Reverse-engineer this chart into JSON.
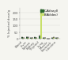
{
  "categories": [
    "Blood",
    "Liver",
    "Spleen",
    "Kidney",
    "Thyroid",
    "Lung",
    "Muscle",
    "Stomach",
    "Intestine"
  ],
  "series": [
    {
      "label": "C-At(aryl)",
      "color": "#2d6a2d",
      "values": [
        8.0,
        12.0,
        5.0,
        9.0,
        18.0,
        5.0,
        1.5,
        4.0,
        6.0
      ],
      "errors": [
        1.2,
        2.0,
        0.8,
        1.5,
        3.0,
        0.8,
        0.3,
        0.6,
        0.9
      ]
    },
    {
      "label": "B-At(dec)",
      "color": "#c8e06a",
      "values": [
        5.0,
        7.0,
        3.0,
        6.0,
        210.0,
        4.0,
        1.0,
        9.0,
        5.0
      ],
      "errors": [
        0.8,
        1.0,
        0.5,
        1.0,
        18.0,
        0.6,
        0.2,
        1.2,
        0.7
      ]
    }
  ],
  "ylabel": "% Injected dose/g",
  "ylim": [
    0,
    240
  ],
  "yticks": [
    0,
    50,
    100,
    150,
    200
  ],
  "bar_width": 0.38,
  "legend_labels": [
    "C-At(aryl)",
    "B-At(dec)"
  ],
  "legend_colors": [
    "#2d6a2d",
    "#c8e06a"
  ],
  "background_color": "#f5f5f0",
  "tick_fontsize": 2.8,
  "ylabel_fontsize": 2.8,
  "legend_fontsize": 2.8
}
